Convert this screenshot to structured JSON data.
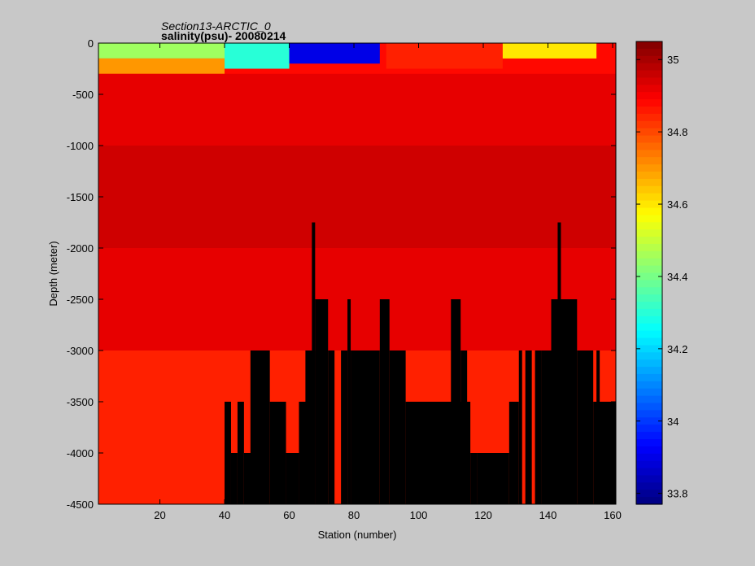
{
  "title": "Section13-ARCTIC_0",
  "subtitle": "salinity(psu)- 20080214",
  "chart_data": {
    "type": "heatmap",
    "title": "Section13-ARCTIC_0",
    "subtitle": "salinity(psu)- 20080214",
    "xlabel": "Station (number)",
    "ylabel": "Depth (meter)",
    "xlim": [
      1,
      161
    ],
    "ylim": [
      -4500,
      0
    ],
    "xticks": [
      20,
      40,
      60,
      80,
      100,
      120,
      140,
      160
    ],
    "yticks": [
      0,
      -500,
      -1000,
      -1500,
      -2000,
      -2500,
      -3000,
      -3500,
      -4000,
      -4500
    ],
    "colorbar": {
      "range": [
        33.77,
        35.05
      ],
      "ticks": [
        33.8,
        34,
        34.2,
        34.4,
        34.6,
        34.8,
        35
      ],
      "colormap": "jet"
    },
    "background_salinity_psu": 34.88,
    "layers": [
      {
        "depth": [
          0,
          -150
        ],
        "stations": [
          1,
          40
        ],
        "salinity": 34.45
      },
      {
        "depth": [
          0,
          -250
        ],
        "stations": [
          40,
          60
        ],
        "salinity": 34.3
      },
      {
        "depth": [
          0,
          -200
        ],
        "stations": [
          60,
          88
        ],
        "salinity": 33.9
      },
      {
        "depth": [
          0,
          -250
        ],
        "stations": [
          90,
          126
        ],
        "salinity": 34.85
      },
      {
        "depth": [
          0,
          -150
        ],
        "stations": [
          126,
          155
        ],
        "salinity": 34.6
      },
      {
        "depth": [
          -150,
          -300
        ],
        "stations": [
          1,
          40
        ],
        "salinity": 34.7
      },
      {
        "depth": [
          -300,
          -1000
        ],
        "stations": [
          1,
          161
        ],
        "salinity": 34.92
      },
      {
        "depth": [
          -1000,
          -2000
        ],
        "stations": [
          1,
          161
        ],
        "salinity": 34.95
      },
      {
        "depth": [
          -2000,
          -3000
        ],
        "stations": [
          1,
          161
        ],
        "salinity": 34.92
      },
      {
        "depth": [
          -3000,
          -4500
        ],
        "stations": [
          1,
          161
        ],
        "salinity": 34.85
      }
    ],
    "seafloor_depth_by_station": [
      {
        "stations": [
          1,
          40
        ],
        "depth": -4500
      },
      {
        "stations": [
          40,
          42
        ],
        "depth": -3500
      },
      {
        "stations": [
          42,
          44
        ],
        "depth": -4000
      },
      {
        "stations": [
          44,
          46
        ],
        "depth": -3500
      },
      {
        "stations": [
          46,
          53
        ],
        "depth": -4000
      },
      {
        "stations": [
          48,
          54
        ],
        "depth": -3000
      },
      {
        "stations": [
          54,
          59
        ],
        "depth": -3500
      },
      {
        "stations": [
          59,
          63
        ],
        "depth": -4000
      },
      {
        "stations": [
          63,
          67
        ],
        "depth": -3500
      },
      {
        "stations": [
          65,
          68
        ],
        "depth": -3000
      },
      {
        "stations": [
          67,
          68
        ],
        "depth": -1750
      },
      {
        "stations": [
          68,
          72
        ],
        "depth": -2500
      },
      {
        "stations": [
          72,
          74
        ],
        "depth": -3000
      },
      {
        "stations": [
          76,
          78
        ],
        "depth": -3000
      },
      {
        "stations": [
          78,
          79
        ],
        "depth": -2500
      },
      {
        "stations": [
          79,
          88
        ],
        "depth": -3000
      },
      {
        "stations": [
          88,
          91
        ],
        "depth": -2500
      },
      {
        "stations": [
          91,
          96
        ],
        "depth": -3000
      },
      {
        "stations": [
          96,
          116
        ],
        "depth": -3500
      },
      {
        "stations": [
          110,
          113
        ],
        "depth": -2500
      },
      {
        "stations": [
          113,
          115
        ],
        "depth": -3000
      },
      {
        "stations": [
          116,
          118
        ],
        "depth": -4000
      },
      {
        "stations": [
          118,
          128
        ],
        "depth": -4000
      },
      {
        "stations": [
          128,
          131
        ],
        "depth": -3500
      },
      {
        "stations": [
          131,
          132
        ],
        "depth": -3000
      },
      {
        "stations": [
          133,
          135
        ],
        "depth": -3000
      },
      {
        "stations": [
          136,
          138
        ],
        "depth": -3000
      },
      {
        "stations": [
          138,
          141
        ],
        "depth": -3000
      },
      {
        "stations": [
          141,
          149
        ],
        "depth": -2500
      },
      {
        "stations": [
          143,
          144
        ],
        "depth": -1750
      },
      {
        "stations": [
          149,
          154
        ],
        "depth": -3000
      },
      {
        "stations": [
          155,
          156
        ],
        "depth": -3000
      },
      {
        "stations": [
          154,
          161
        ],
        "depth": -3500
      }
    ]
  }
}
